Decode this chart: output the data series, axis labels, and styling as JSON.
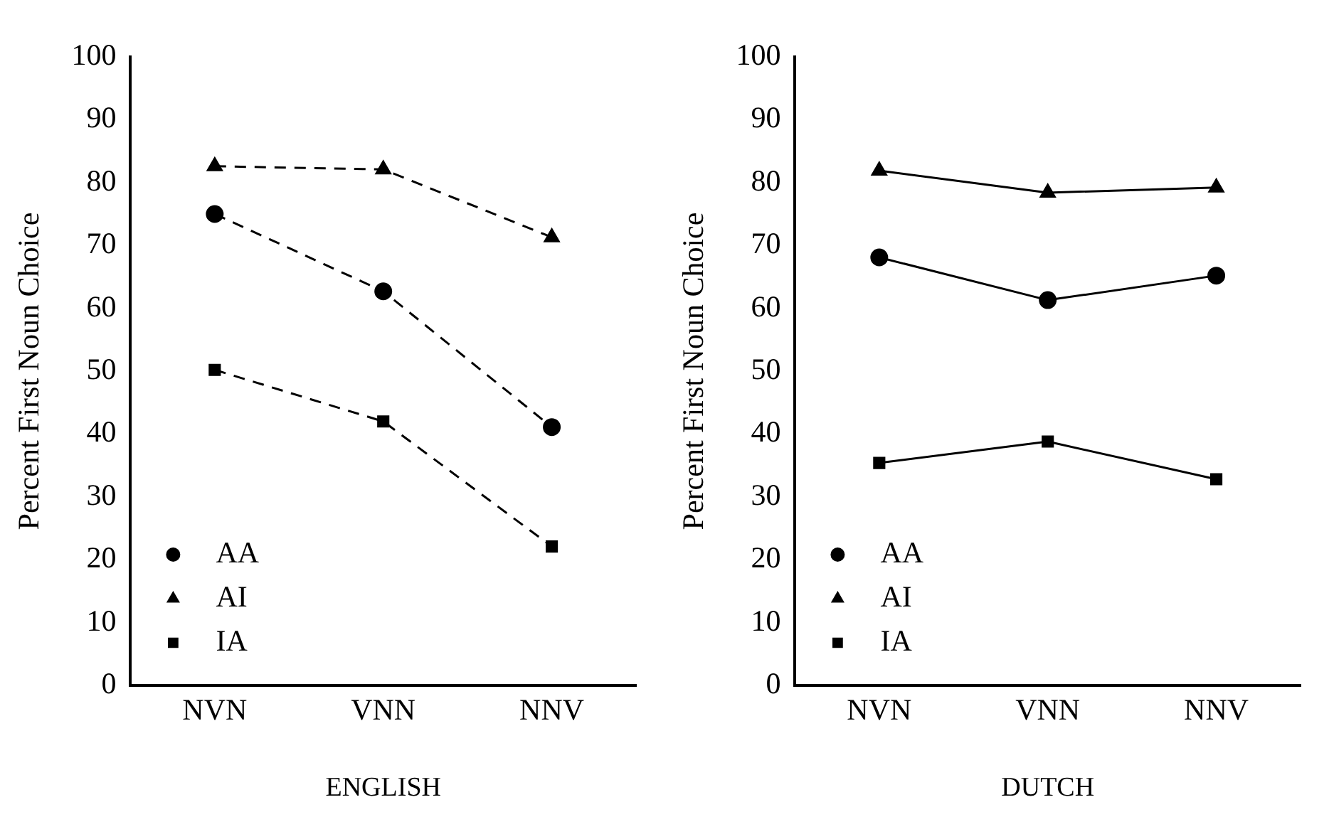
{
  "chart_data": [
    {
      "type": "line",
      "xlabel": "ENGLISH",
      "ylabel": "Percent First Noun Choice",
      "categories": [
        "NVN",
        "VNN",
        "NNV"
      ],
      "ylim": [
        0,
        100
      ],
      "yticks": [
        0,
        10,
        20,
        30,
        40,
        50,
        60,
        70,
        80,
        90,
        100
      ],
      "grid": false,
      "legend": "bottom left",
      "line_style": "dashed",
      "series": [
        {
          "name": "AA",
          "color": "#000000",
          "marker": "circle",
          "values": [
            75.0,
            62.7,
            41.1
          ]
        },
        {
          "name": "AI",
          "color": "#000000",
          "marker": "triangle",
          "values": [
            82.6,
            82.1,
            71.3
          ]
        },
        {
          "name": "IA",
          "color": "#000000",
          "marker": "square",
          "values": [
            50.2,
            42.0,
            22.1
          ]
        }
      ]
    },
    {
      "type": "line",
      "xlabel": "DUTCH",
      "ylabel": "Percent First Noun Choice",
      "categories": [
        "NVN",
        "VNN",
        "NNV"
      ],
      "ylim": [
        0,
        100
      ],
      "yticks": [
        0,
        10,
        20,
        30,
        40,
        50,
        60,
        70,
        80,
        90,
        100
      ],
      "grid": false,
      "legend": "bottom left",
      "line_style": "solid",
      "series": [
        {
          "name": "AA",
          "color": "#000000",
          "marker": "circle",
          "values": [
            68.1,
            61.3,
            65.2
          ]
        },
        {
          "name": "AI",
          "color": "#000000",
          "marker": "triangle",
          "values": [
            81.9,
            78.4,
            79.2
          ]
        },
        {
          "name": "IA",
          "color": "#000000",
          "marker": "square",
          "values": [
            35.4,
            38.8,
            32.8
          ]
        }
      ]
    }
  ]
}
